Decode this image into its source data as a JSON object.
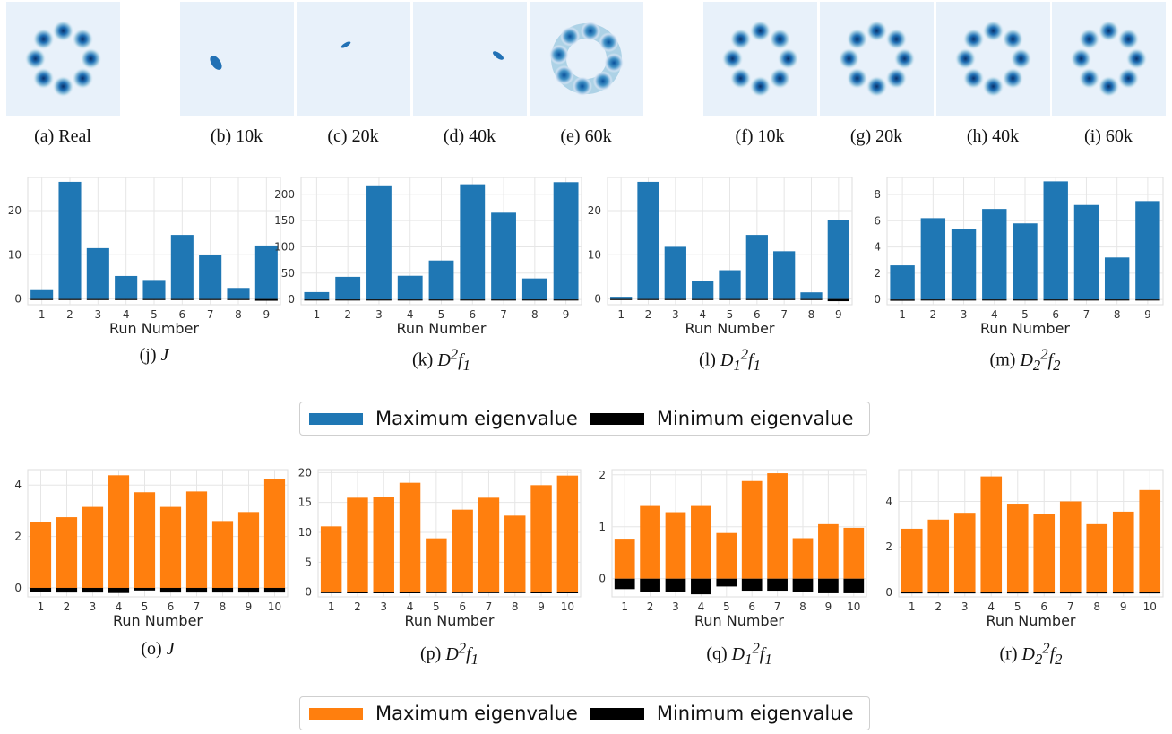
{
  "density_panels": [
    {
      "caption": "(a) Real",
      "mode": "ring"
    },
    {
      "caption": "(b) 10k",
      "mode": "collapsed"
    },
    {
      "caption": "(c) 20k",
      "mode": "collapsed"
    },
    {
      "caption": "(d) 40k",
      "mode": "collapsed"
    },
    {
      "caption": "(e) 60k",
      "mode": "ring-blurred"
    },
    {
      "caption": "(f) 10k",
      "mode": "ring"
    },
    {
      "caption": "(g) 20k",
      "mode": "ring"
    },
    {
      "caption": "(h) 40k",
      "mode": "ring"
    },
    {
      "caption": "(i) 60k",
      "mode": "ring"
    }
  ],
  "legends": {
    "blue": {
      "max_label": "Maximum eigenvalue",
      "min_label": "Minimum eigenvalue",
      "max_color": "#1f77b4",
      "min_color": "#000000"
    },
    "orange": {
      "max_label": "Maximum eigenvalue",
      "min_label": "Minimum eigenvalue",
      "max_color": "#ff7f0e",
      "min_color": "#000000"
    }
  },
  "chart_data": [
    {
      "type": "bar",
      "caption_prefix": "(j) ",
      "caption_math": "J",
      "xlabel": "Run Number",
      "categories": [
        "1",
        "2",
        "3",
        "4",
        "5",
        "6",
        "7",
        "8",
        "9"
      ],
      "ylim": [
        -1.3,
        27.5
      ],
      "yticks": [
        0,
        10,
        20
      ],
      "series": [
        {
          "role": "max",
          "values": [
            2,
            26.5,
            11.5,
            5.2,
            4.3,
            14.5,
            9.9,
            2.5,
            12.1
          ]
        },
        {
          "role": "min",
          "values": [
            0,
            0,
            -0.2,
            -0.15,
            -0.15,
            0,
            -0.2,
            0,
            -0.4
          ]
        }
      ]
    },
    {
      "type": "bar",
      "caption_prefix": "(k) ",
      "caption_math": "D<sup>2</sup>f<sub>1</sub>",
      "xlabel": "Run Number",
      "categories": [
        "1",
        "2",
        "3",
        "4",
        "5",
        "6",
        "7",
        "8",
        "9"
      ],
      "ylim": [
        -10,
        232
      ],
      "yticks": [
        0,
        50,
        100,
        150,
        200
      ],
      "series": [
        {
          "role": "max",
          "values": [
            14,
            43,
            217,
            45,
            74,
            219,
            165,
            40,
            223
          ]
        },
        {
          "role": "min",
          "values": [
            0,
            0,
            0,
            0,
            0,
            0,
            0,
            0,
            0
          ]
        }
      ]
    },
    {
      "type": "bar",
      "caption_prefix": "(l) ",
      "caption_math": "D<sub>1</sub><sup>2</sup>f<sub>1</sub>",
      "xlabel": "Run Number",
      "categories": [
        "1",
        "2",
        "3",
        "4",
        "5",
        "6",
        "7",
        "8",
        "9"
      ],
      "ylim": [
        -1.3,
        27.5
      ],
      "yticks": [
        0,
        10,
        20
      ],
      "series": [
        {
          "role": "max",
          "values": [
            0.5,
            26.5,
            11.8,
            4.0,
            6.5,
            14.5,
            10.8,
            1.5,
            17.8
          ]
        },
        {
          "role": "min",
          "values": [
            0,
            0,
            -0.2,
            -0.2,
            -0.2,
            0,
            -0.2,
            0,
            -0.5
          ]
        }
      ]
    },
    {
      "type": "bar",
      "caption_prefix": "(m) ",
      "caption_math": "D<sub>2</sub><sup>2</sup>f<sub>2</sub>",
      "xlabel": "Run Number",
      "categories": [
        "1",
        "2",
        "3",
        "4",
        "5",
        "6",
        "7",
        "8",
        "9"
      ],
      "ylim": [
        -0.4,
        9.3
      ],
      "yticks": [
        0,
        2,
        4,
        6,
        8
      ],
      "series": [
        {
          "role": "max",
          "values": [
            2.6,
            6.2,
            5.4,
            6.9,
            5.8,
            9.0,
            7.2,
            3.2,
            7.5
          ]
        },
        {
          "role": "min",
          "values": [
            -0.1,
            0,
            0,
            0,
            0,
            0,
            0,
            0,
            0
          ]
        }
      ]
    },
    {
      "type": "bar",
      "caption_prefix": "(o) ",
      "caption_math": "J",
      "xlabel": "Run Number",
      "categories": [
        "1",
        "2",
        "3",
        "4",
        "5",
        "6",
        "7",
        "8",
        "9",
        "10"
      ],
      "ylim": [
        -0.35,
        4.6
      ],
      "yticks": [
        0,
        2,
        4
      ],
      "series": [
        {
          "role": "max",
          "values": [
            2.55,
            2.75,
            3.15,
            4.38,
            3.72,
            3.15,
            3.75,
            2.6,
            2.95,
            4.25
          ]
        },
        {
          "role": "min",
          "values": [
            -0.15,
            -0.18,
            -0.18,
            -0.2,
            -0.1,
            -0.18,
            -0.18,
            -0.18,
            -0.18,
            -0.18
          ]
        }
      ]
    },
    {
      "type": "bar",
      "caption_prefix": "(p) ",
      "caption_math": "D<sup>2</sup>f<sub>1</sub>",
      "xlabel": "Run Number",
      "categories": [
        "1",
        "2",
        "3",
        "4",
        "5",
        "6",
        "7",
        "8",
        "9",
        "10"
      ],
      "ylim": [
        -0.8,
        20.5
      ],
      "yticks": [
        0,
        5,
        10,
        15,
        20
      ],
      "series": [
        {
          "role": "max",
          "values": [
            11.0,
            15.8,
            15.9,
            18.3,
            9.0,
            13.8,
            15.8,
            12.8,
            17.9,
            19.5
          ]
        },
        {
          "role": "min",
          "values": [
            -0.1,
            -0.2,
            -0.2,
            -0.2,
            0,
            -0.1,
            -0.1,
            -0.1,
            -0.2,
            -0.2
          ]
        }
      ]
    },
    {
      "type": "bar",
      "caption_prefix": "(q) ",
      "caption_math": "D<sub>1</sub><sup>2</sup>f<sub>1</sub>",
      "xlabel": "Run Number",
      "categories": [
        "1",
        "2",
        "3",
        "4",
        "5",
        "6",
        "7",
        "8",
        "9",
        "10"
      ],
      "ylim": [
        -0.35,
        2.1
      ],
      "yticks": [
        0,
        1,
        2
      ],
      "series": [
        {
          "role": "max",
          "values": [
            0.77,
            1.4,
            1.28,
            1.4,
            0.88,
            1.88,
            2.03,
            0.78,
            1.05,
            0.98
          ]
        },
        {
          "role": "min",
          "values": [
            -0.2,
            -0.26,
            -0.26,
            -0.3,
            -0.15,
            -0.23,
            -0.23,
            -0.26,
            -0.28,
            -0.28
          ]
        }
      ]
    },
    {
      "type": "bar",
      "caption_prefix": "(r) ",
      "caption_math": "D<sub>2</sub><sup>2</sup>f<sub>2</sub>",
      "xlabel": "Run Number",
      "categories": [
        "1",
        "2",
        "3",
        "4",
        "5",
        "6",
        "7",
        "8",
        "9",
        "10"
      ],
      "ylim": [
        -0.2,
        5.4
      ],
      "yticks": [
        0,
        2,
        4
      ],
      "series": [
        {
          "role": "max",
          "values": [
            2.8,
            3.2,
            3.5,
            5.1,
            3.9,
            3.45,
            4.0,
            3.0,
            3.55,
            4.5
          ]
        },
        {
          "role": "min",
          "values": [
            0,
            0,
            0,
            0,
            0,
            0,
            0,
            0,
            0,
            0
          ]
        }
      ]
    }
  ]
}
